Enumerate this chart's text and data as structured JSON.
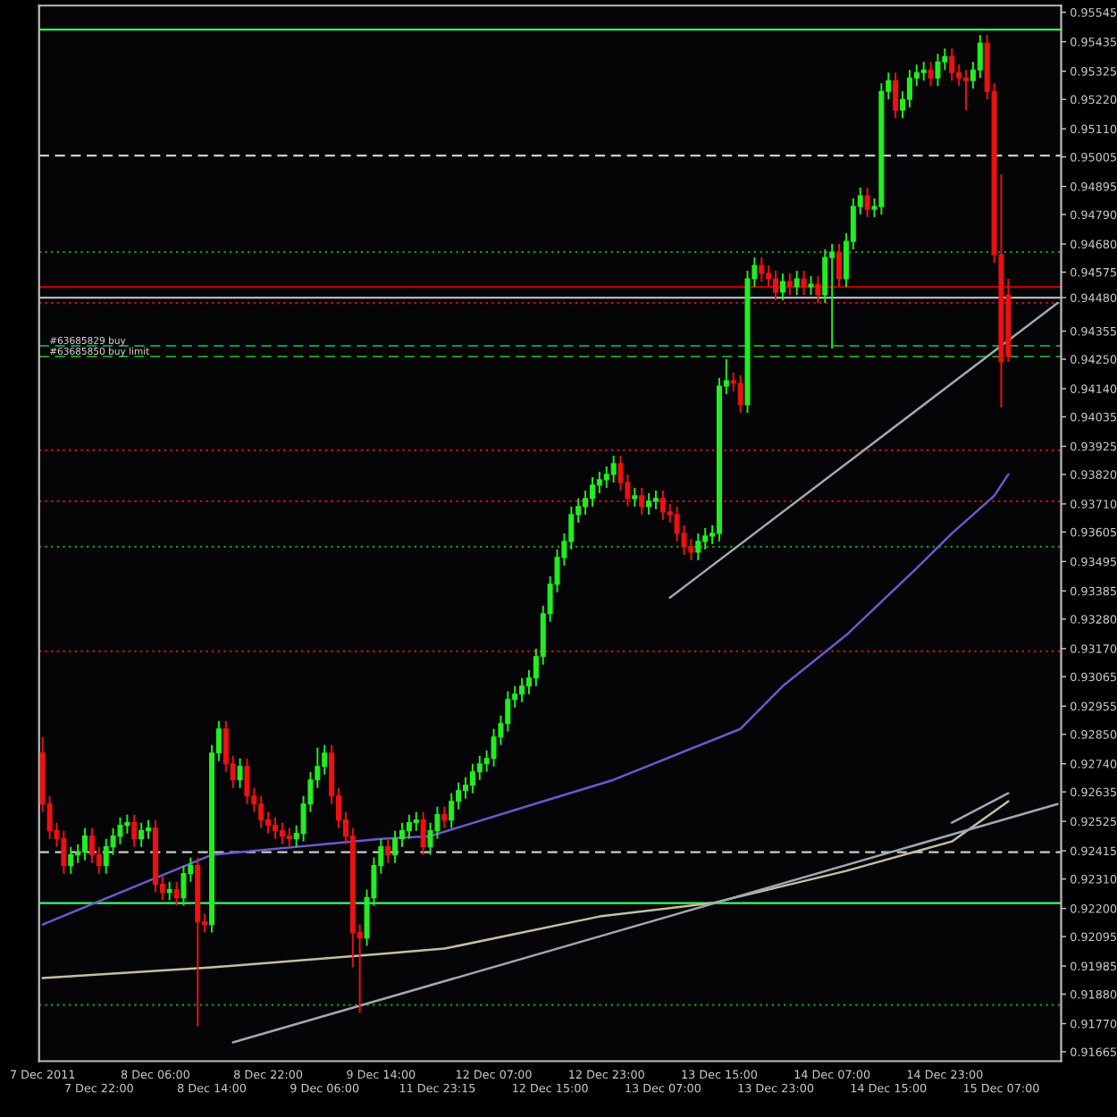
{
  "chart_data": {
    "type": "candlestick",
    "categories": [
      "7 Dec 2011",
      null,
      null,
      null,
      null,
      null,
      null,
      null,
      "7 Dec 22:00",
      null,
      null,
      null,
      null,
      null,
      null,
      null,
      "8 Dec 06:00",
      null,
      null,
      null,
      null,
      null,
      null,
      null,
      "8 Dec 14:00",
      null,
      null,
      null,
      null,
      null,
      null,
      null,
      "8 Dec 22:00",
      null,
      null,
      null,
      null,
      null,
      null,
      null,
      "9 Dec 06:00",
      null,
      null,
      null,
      null,
      null,
      null,
      null,
      "9 Dec 14:00",
      null,
      null,
      null,
      null,
      null,
      null,
      null,
      "11 Dec 23:15",
      null,
      null,
      null,
      null,
      null,
      null,
      null,
      "12 Dec 07:00",
      null,
      null,
      null,
      null,
      null,
      null,
      null,
      "12 Dec 15:00",
      null,
      null,
      null,
      null,
      null,
      null,
      null,
      "12 Dec 23:00",
      null,
      null,
      null,
      null,
      null,
      null,
      null,
      "13 Dec 07:00",
      null,
      null,
      null,
      null,
      null,
      null,
      null,
      "13 Dec 15:00",
      null,
      null,
      null,
      null,
      null,
      null,
      null,
      "13 Dec 23:00",
      null,
      null,
      null,
      null,
      null,
      null,
      null,
      "14 Dec 07:00",
      null,
      null,
      null,
      null,
      null,
      null,
      null,
      "14 Dec 15:00",
      null,
      null,
      null,
      null,
      null,
      null,
      null,
      "14 Dec 23:00",
      null,
      null,
      null,
      null,
      null,
      null,
      null,
      "15 Dec 07:00",
      null,
      null,
      null,
      null,
      null,
      null,
      null,
      null
    ],
    "ohlc": [
      [
        0.9278,
        0.9284,
        0.9256,
        0.9259
      ],
      [
        0.9259,
        0.9262,
        0.9246,
        0.9249
      ],
      [
        0.9249,
        0.9252,
        0.9243,
        0.9246
      ],
      [
        0.9246,
        0.9249,
        0.9233,
        0.9236
      ],
      [
        0.9236,
        0.9243,
        0.9233,
        0.924
      ],
      [
        0.924,
        0.9244,
        0.9237,
        0.9241
      ],
      [
        0.9241,
        0.925,
        0.9238,
        0.9247
      ],
      [
        0.9247,
        0.925,
        0.9237,
        0.924
      ],
      [
        0.924,
        0.9243,
        0.9233,
        0.9236
      ],
      [
        0.9236,
        0.9246,
        0.9233,
        0.9243
      ],
      [
        0.9243,
        0.925,
        0.924,
        0.9247
      ],
      [
        0.9247,
        0.9254,
        0.9244,
        0.9251
      ],
      [
        0.9251,
        0.9255,
        0.9248,
        0.9252
      ],
      [
        0.9252,
        0.9255,
        0.9243,
        0.9246
      ],
      [
        0.9246,
        0.9252,
        0.9243,
        0.9249
      ],
      [
        0.9249,
        0.9253,
        0.9246,
        0.925
      ],
      [
        0.925,
        0.9253,
        0.9226,
        0.9229
      ],
      [
        0.9229,
        0.9232,
        0.9223,
        0.9226
      ],
      [
        0.9226,
        0.923,
        0.9223,
        0.9227
      ],
      [
        0.9227,
        0.923,
        0.9221,
        0.9224
      ],
      [
        0.9224,
        0.9236,
        0.9221,
        0.9233
      ],
      [
        0.9233,
        0.9239,
        0.923,
        0.9236
      ],
      [
        0.9236,
        0.9239,
        0.9176,
        0.9215
      ],
      [
        0.9215,
        0.9218,
        0.9211,
        0.9214
      ],
      [
        0.9214,
        0.9281,
        0.9211,
        0.9278
      ],
      [
        0.9278,
        0.929,
        0.9275,
        0.9287
      ],
      [
        0.9287,
        0.929,
        0.9271,
        0.9274
      ],
      [
        0.9274,
        0.9277,
        0.9265,
        0.9268
      ],
      [
        0.9268,
        0.9276,
        0.9265,
        0.9273
      ],
      [
        0.9273,
        0.9276,
        0.9259,
        0.9262
      ],
      [
        0.9262,
        0.9265,
        0.9256,
        0.9259
      ],
      [
        0.9259,
        0.9262,
        0.925,
        0.9253
      ],
      [
        0.9253,
        0.9256,
        0.9248,
        0.9251
      ],
      [
        0.9251,
        0.9254,
        0.9246,
        0.9249
      ],
      [
        0.9249,
        0.9252,
        0.9244,
        0.9247
      ],
      [
        0.9247,
        0.925,
        0.9243,
        0.9246
      ],
      [
        0.9246,
        0.9251,
        0.9243,
        0.9248
      ],
      [
        0.9248,
        0.9262,
        0.9245,
        0.9259
      ],
      [
        0.9259,
        0.9271,
        0.9256,
        0.9268
      ],
      [
        0.9268,
        0.928,
        0.9265,
        0.9273
      ],
      [
        0.9273,
        0.9281,
        0.927,
        0.9278
      ],
      [
        0.9278,
        0.9281,
        0.9259,
        0.9262
      ],
      [
        0.9262,
        0.9265,
        0.925,
        0.9253
      ],
      [
        0.9253,
        0.9256,
        0.9244,
        0.9247
      ],
      [
        0.9247,
        0.925,
        0.9198,
        0.9211
      ],
      [
        0.9211,
        0.9214,
        0.9181,
        0.9209
      ],
      [
        0.9209,
        0.9227,
        0.9206,
        0.9224
      ],
      [
        0.9224,
        0.9239,
        0.9221,
        0.9236
      ],
      [
        0.9236,
        0.9246,
        0.9233,
        0.9243
      ],
      [
        0.9243,
        0.9246,
        0.9237,
        0.924
      ],
      [
        0.924,
        0.9249,
        0.9237,
        0.9246
      ],
      [
        0.9246,
        0.9252,
        0.9243,
        0.9249
      ],
      [
        0.9249,
        0.9255,
        0.9246,
        0.9252
      ],
      [
        0.9252,
        0.9256,
        0.9249,
        0.9253
      ],
      [
        0.9253,
        0.9256,
        0.924,
        0.9243
      ],
      [
        0.9243,
        0.9252,
        0.924,
        0.9249
      ],
      [
        0.9249,
        0.9258,
        0.9246,
        0.9255
      ],
      [
        0.9255,
        0.9258,
        0.925,
        0.9253
      ],
      [
        0.9253,
        0.9263,
        0.925,
        0.926
      ],
      [
        0.926,
        0.9267,
        0.9257,
        0.9264
      ],
      [
        0.9264,
        0.9269,
        0.9261,
        0.9266
      ],
      [
        0.9266,
        0.9274,
        0.9263,
        0.9271
      ],
      [
        0.9271,
        0.9277,
        0.9268,
        0.9274
      ],
      [
        0.9274,
        0.9279,
        0.9271,
        0.9276
      ],
      [
        0.9276,
        0.9287,
        0.9273,
        0.9284
      ],
      [
        0.9284,
        0.9292,
        0.9281,
        0.9289
      ],
      [
        0.9289,
        0.9301,
        0.9286,
        0.9298
      ],
      [
        0.9298,
        0.9303,
        0.9295,
        0.93
      ],
      [
        0.93,
        0.9306,
        0.9297,
        0.9303
      ],
      [
        0.9303,
        0.9309,
        0.93,
        0.9306
      ],
      [
        0.9306,
        0.9317,
        0.9303,
        0.9314
      ],
      [
        0.9314,
        0.9333,
        0.9311,
        0.933
      ],
      [
        0.933,
        0.9344,
        0.9327,
        0.9341
      ],
      [
        0.9341,
        0.9354,
        0.9338,
        0.9351
      ],
      [
        0.9351,
        0.936,
        0.9348,
        0.9357
      ],
      [
        0.9357,
        0.937,
        0.9354,
        0.9367
      ],
      [
        0.9367,
        0.9373,
        0.9364,
        0.937
      ],
      [
        0.937,
        0.9376,
        0.9367,
        0.9373
      ],
      [
        0.9373,
        0.9381,
        0.937,
        0.9378
      ],
      [
        0.9378,
        0.9383,
        0.9375,
        0.938
      ],
      [
        0.938,
        0.9385,
        0.9377,
        0.9382
      ],
      [
        0.9382,
        0.9389,
        0.9379,
        0.9386
      ],
      [
        0.9386,
        0.9389,
        0.9376,
        0.9379
      ],
      [
        0.9379,
        0.9382,
        0.937,
        0.9373
      ],
      [
        0.9373,
        0.9377,
        0.937,
        0.9374
      ],
      [
        0.9374,
        0.9377,
        0.9367,
        0.937
      ],
      [
        0.937,
        0.9375,
        0.9367,
        0.9372
      ],
      [
        0.9372,
        0.9376,
        0.9369,
        0.9373
      ],
      [
        0.9373,
        0.9376,
        0.9365,
        0.9368
      ],
      [
        0.9368,
        0.9371,
        0.9364,
        0.9367
      ],
      [
        0.9367,
        0.937,
        0.9357,
        0.936
      ],
      [
        0.936,
        0.9363,
        0.9352,
        0.9355
      ],
      [
        0.9355,
        0.9358,
        0.935,
        0.9353
      ],
      [
        0.9353,
        0.936,
        0.935,
        0.9357
      ],
      [
        0.9357,
        0.9362,
        0.9354,
        0.9359
      ],
      [
        0.9359,
        0.9363,
        0.9356,
        0.936
      ],
      [
        0.936,
        0.9418,
        0.9357,
        0.9415
      ],
      [
        0.9415,
        0.9425,
        0.9412,
        0.9417
      ],
      [
        0.9417,
        0.942,
        0.9413,
        0.9416
      ],
      [
        0.9416,
        0.9419,
        0.9405,
        0.9408
      ],
      [
        0.9408,
        0.9458,
        0.9405,
        0.9455
      ],
      [
        0.9455,
        0.9463,
        0.9452,
        0.946
      ],
      [
        0.946,
        0.9463,
        0.9454,
        0.9457
      ],
      [
        0.9457,
        0.946,
        0.9452,
        0.9455
      ],
      [
        0.9455,
        0.9458,
        0.9447,
        0.945
      ],
      [
        0.945,
        0.9457,
        0.9447,
        0.9454
      ],
      [
        0.9454,
        0.9457,
        0.9449,
        0.9452
      ],
      [
        0.9452,
        0.9458,
        0.9449,
        0.9455
      ],
      [
        0.9455,
        0.9458,
        0.9449,
        0.9452
      ],
      [
        0.9452,
        0.9456,
        0.9449,
        0.9453
      ],
      [
        0.9453,
        0.9456,
        0.9446,
        0.9449
      ],
      [
        0.9449,
        0.9466,
        0.9446,
        0.9463
      ],
      [
        0.9463,
        0.9468,
        0.9429,
        0.9465
      ],
      [
        0.9465,
        0.9468,
        0.9452,
        0.9455
      ],
      [
        0.9455,
        0.9472,
        0.9452,
        0.9469
      ],
      [
        0.9469,
        0.9485,
        0.9466,
        0.9482
      ],
      [
        0.9482,
        0.9489,
        0.9479,
        0.9486
      ],
      [
        0.9486,
        0.9489,
        0.9478,
        0.9481
      ],
      [
        0.9481,
        0.9485,
        0.9478,
        0.9482
      ],
      [
        0.9482,
        0.9528,
        0.9479,
        0.9525
      ],
      [
        0.9525,
        0.9532,
        0.9522,
        0.9529
      ],
      [
        0.9529,
        0.9532,
        0.9515,
        0.9518
      ],
      [
        0.9518,
        0.9525,
        0.9515,
        0.9522
      ],
      [
        0.9522,
        0.9533,
        0.9519,
        0.953
      ],
      [
        0.953,
        0.9535,
        0.9527,
        0.9532
      ],
      [
        0.9532,
        0.9536,
        0.9529,
        0.9533
      ],
      [
        0.9533,
        0.9536,
        0.9527,
        0.953
      ],
      [
        0.953,
        0.9539,
        0.9527,
        0.9536
      ],
      [
        0.9536,
        0.9541,
        0.9533,
        0.9538
      ],
      [
        0.9538,
        0.9541,
        0.9529,
        0.9532
      ],
      [
        0.9532,
        0.9535,
        0.9527,
        0.953
      ],
      [
        0.953,
        0.9533,
        0.9518,
        0.9529
      ],
      [
        0.9529,
        0.9536,
        0.9526,
        0.9533
      ],
      [
        0.9533,
        0.9546,
        0.953,
        0.9543
      ],
      [
        0.9543,
        0.9546,
        0.9522,
        0.9525
      ],
      [
        0.9525,
        0.9528,
        0.9461,
        0.9464
      ],
      [
        0.9464,
        0.9494,
        0.9407,
        0.9424
      ],
      [
        0.9449,
        0.9455,
        0.9424,
        0.9426
      ],
      null,
      null,
      null,
      null,
      null,
      null,
      null
    ],
    "colors": [
      "#ee1111",
      "#ee1111",
      "#ee1111",
      "#ee1111",
      "#22ee22",
      "#22ee22",
      "#22ee22",
      "#ee1111",
      "#ee1111",
      "#22ee22",
      "#22ee22",
      "#22ee22",
      "#22ee22",
      "#ee1111",
      "#22ee22",
      "#22ee22",
      "#ee1111",
      "#ee1111",
      "#22ee22",
      "#ee1111",
      "#22ee22",
      "#22ee22",
      "#ee1111",
      "#ee1111",
      "#22ee22",
      "#22ee22",
      "#ee1111",
      "#ee1111",
      "#22ee22",
      "#ee1111",
      "#ee1111",
      "#ee1111",
      "#ee1111",
      "#ee1111",
      "#ee1111",
      "#ee1111",
      "#22ee22",
      "#22ee22",
      "#22ee22",
      "#22ee22",
      "#22ee22",
      "#ee1111",
      "#ee1111",
      "#ee1111",
      "#ee1111",
      "#ee1111",
      "#22ee22",
      "#22ee22",
      "#22ee22",
      "#ee1111",
      "#22ee22",
      "#22ee22",
      "#22ee22",
      "#22ee22",
      "#ee1111",
      "#22ee22",
      "#22ee22",
      "#ee1111",
      "#22ee22",
      "#22ee22",
      "#22ee22",
      "#22ee22",
      "#22ee22",
      "#22ee22",
      "#22ee22",
      "#22ee22",
      "#22ee22",
      "#22ee22",
      "#22ee22",
      "#22ee22",
      "#22ee22",
      "#22ee22",
      "#22ee22",
      "#22ee22",
      "#22ee22",
      "#22ee22",
      "#22ee22",
      "#22ee22",
      "#22ee22",
      "#22ee22",
      "#22ee22",
      "#22ee22",
      "#ee1111",
      "#ee1111",
      "#22ee22",
      "#ee1111",
      "#22ee22",
      "#22ee22",
      "#ee1111",
      "#ee1111",
      "#ee1111",
      "#ee1111",
      "#ee1111",
      "#22ee22",
      "#22ee22",
      "#22ee22",
      "#22ee22",
      "#22ee22",
      "#ee1111",
      "#ee1111",
      "#22ee22",
      "#22ee22",
      "#ee1111",
      "#ee1111",
      "#ee1111",
      "#22ee22",
      "#ee1111",
      "#22ee22",
      "#ee1111",
      "#22ee22",
      "#ee1111",
      "#22ee22",
      "#22ee22",
      "#ee1111",
      "#22ee22",
      "#22ee22",
      "#22ee22",
      "#ee1111",
      "#22ee22",
      "#22ee22",
      "#22ee22",
      "#ee1111",
      "#22ee22",
      "#22ee22",
      "#22ee22",
      "#22ee22",
      "#ee1111",
      "#22ee22",
      "#22ee22",
      "#ee1111",
      "#ee1111",
      "#ee1111",
      "#22ee22",
      "#22ee22",
      "#ee1111",
      "#ee1111",
      "#ee1111",
      "#ee1111",
      null,
      null,
      null,
      null,
      null,
      null,
      null
    ],
    "series": [
      {
        "type": "line",
        "color": "#6a5acd",
        "values": [
          0.9214,
          null,
          null,
          null,
          null,
          null,
          null,
          null,
          null,
          null,
          null,
          null,
          null,
          null,
          null,
          null,
          null,
          null,
          null,
          null,
          null,
          null,
          null,
          null,
          0.924,
          null,
          null,
          null,
          null,
          null,
          null,
          null,
          null,
          null,
          null,
          null,
          null,
          null,
          null,
          null,
          null,
          null,
          null,
          null,
          null,
          null,
          null,
          null,
          0.9246,
          null,
          null,
          null,
          null,
          null,
          null,
          0.9247,
          null,
          null,
          null,
          null,
          null,
          null,
          null,
          null,
          null,
          null,
          null,
          null,
          null,
          null,
          null,
          0.926,
          null,
          null,
          null,
          null,
          null,
          null,
          null,
          null,
          null,
          0.9268,
          null,
          null,
          null,
          null,
          null,
          null,
          null,
          null,
          null,
          null,
          null,
          null,
          null,
          null,
          null,
          null,
          null,
          0.9287,
          null,
          null,
          null,
          null,
          null,
          0.9303,
          null,
          null,
          null,
          null,
          null,
          null,
          null,
          null,
          0.9322,
          null,
          null,
          null,
          null,
          null,
          null,
          null,
          null,
          null,
          0.9347,
          null,
          null,
          null,
          null,
          0.936,
          null,
          null,
          null,
          null,
          null,
          0.9374,
          null,
          0.9382,
          null,
          null,
          null,
          null,
          null,
          null,
          null
        ]
      },
      {
        "type": "line",
        "color": "#c8bea0",
        "values": [
          0.9194,
          null,
          null,
          null,
          null,
          null,
          null,
          null,
          null,
          null,
          null,
          null,
          null,
          null,
          null,
          null,
          null,
          null,
          null,
          null,
          null,
          null,
          null,
          null,
          0.9198,
          null,
          null,
          null,
          null,
          null,
          null,
          null,
          null,
          null,
          null,
          null,
          null,
          null,
          null,
          null,
          null,
          null,
          null,
          null,
          null,
          null,
          null,
          null,
          0.9203,
          null,
          null,
          null,
          null,
          null,
          null,
          null,
          null,
          0.9205,
          null,
          null,
          null,
          null,
          null,
          null,
          null,
          null,
          null,
          null,
          null,
          null,
          null,
          null,
          null,
          null,
          null,
          null,
          null,
          null,
          null,
          0.9217,
          null,
          null,
          null,
          null,
          null,
          null,
          null,
          null,
          null,
          null,
          null,
          null,
          null,
          null,
          null,
          0.9222,
          null,
          null,
          null,
          null,
          null,
          null,
          null,
          null,
          null,
          null,
          null,
          null,
          null,
          null,
          null,
          null,
          null,
          null,
          0.9234,
          null,
          null,
          null,
          null,
          null,
          null,
          null,
          null,
          null,
          null,
          null,
          null,
          null,
          null,
          0.9245,
          null,
          null,
          null,
          null,
          null,
          null,
          null,
          0.926,
          null,
          null,
          null,
          null,
          null,
          null,
          null
        ]
      },
      {
        "type": "line",
        "color": "#a0a8b0",
        "values": [
          null,
          null,
          null,
          null,
          null,
          null,
          null,
          null,
          null,
          null,
          null,
          null,
          null,
          null,
          null,
          null,
          null,
          null,
          null,
          null,
          null,
          null,
          null,
          null,
          null,
          null,
          null,
          0.917,
          null,
          null,
          null,
          null,
          null,
          null,
          null,
          null,
          null,
          null,
          null,
          null,
          null,
          null,
          null,
          null,
          null,
          null,
          null,
          null,
          null,
          null,
          null,
          null,
          null,
          null,
          null,
          null,
          null,
          null,
          null,
          null,
          null,
          null,
          null,
          null,
          null,
          null,
          null,
          null,
          null,
          null,
          null,
          null,
          null,
          null,
          null,
          null,
          null,
          null,
          null,
          null,
          null,
          null,
          null,
          null,
          null,
          null,
          null,
          null,
          null,
          null,
          null,
          null,
          null,
          null,
          null,
          null,
          null,
          null,
          null,
          null,
          null,
          null,
          null,
          null,
          null,
          null,
          null,
          null,
          null,
          null,
          null,
          null,
          null,
          null,
          null,
          null,
          null,
          null,
          null,
          null,
          null,
          null,
          null,
          null,
          null,
          null,
          null,
          null,
          null,
          null,
          null,
          null,
          null,
          null,
          null,
          null,
          null,
          null,
          null,
          null,
          null,
          null,
          null,
          null,
          0.9259
        ]
      },
      {
        "type": "line",
        "color": "#a0a8b0",
        "values": [
          null,
          null,
          null,
          null,
          null,
          null,
          null,
          null,
          null,
          null,
          null,
          null,
          null,
          null,
          null,
          null,
          null,
          null,
          null,
          null,
          null,
          null,
          null,
          null,
          null,
          null,
          null,
          null,
          null,
          null,
          null,
          null,
          null,
          null,
          null,
          null,
          null,
          null,
          null,
          null,
          null,
          null,
          null,
          null,
          null,
          null,
          null,
          null,
          null,
          null,
          null,
          null,
          null,
          null,
          null,
          null,
          null,
          null,
          null,
          null,
          null,
          null,
          null,
          null,
          null,
          null,
          null,
          null,
          null,
          null,
          null,
          null,
          null,
          null,
          null,
          null,
          null,
          null,
          null,
          null,
          null,
          null,
          null,
          null,
          null,
          null,
          null,
          null,
          null,
          0.9336,
          null,
          null,
          null,
          null,
          null,
          null,
          null,
          null,
          null,
          null,
          null,
          null,
          null,
          null,
          null,
          null,
          null,
          null,
          null,
          null,
          null,
          null,
          null,
          null,
          null,
          null,
          null,
          null,
          null,
          null,
          null,
          null,
          null,
          null,
          null,
          null,
          null,
          null,
          null,
          null,
          null,
          null,
          null,
          null,
          null,
          null,
          null,
          null,
          null,
          null,
          null,
          null,
          null,
          null,
          0.9446
        ]
      },
      {
        "type": "line",
        "color": "#a0a8b0",
        "values": [
          null,
          null,
          null,
          null,
          null,
          null,
          null,
          null,
          null,
          null,
          null,
          null,
          null,
          null,
          null,
          null,
          null,
          null,
          null,
          null,
          null,
          null,
          null,
          null,
          null,
          null,
          null,
          null,
          null,
          null,
          null,
          null,
          null,
          null,
          null,
          null,
          null,
          null,
          null,
          null,
          null,
          null,
          null,
          null,
          null,
          null,
          null,
          null,
          null,
          null,
          null,
          null,
          null,
          null,
          null,
          null,
          null,
          null,
          null,
          null,
          null,
          null,
          null,
          null,
          null,
          null,
          null,
          null,
          null,
          null,
          null,
          null,
          null,
          null,
          null,
          null,
          null,
          null,
          null,
          null,
          null,
          null,
          null,
          null,
          null,
          null,
          null,
          null,
          null,
          null,
          null,
          null,
          null,
          null,
          null,
          null,
          null,
          null,
          null,
          null,
          null,
          null,
          null,
          null,
          null,
          null,
          null,
          null,
          null,
          null,
          null,
          null,
          null,
          null,
          null,
          null,
          null,
          null,
          null,
          null,
          null,
          null,
          null,
          null,
          null,
          null,
          null,
          null,
          null,
          0.9252,
          null,
          null,
          null,
          null,
          null,
          null,
          null,
          0.9263,
          null,
          null,
          null,
          null,
          null,
          null,
          null
        ]
      }
    ],
    "ylim": [
      0.9163,
      0.9557
    ],
    "yticks": [
      {
        "value": 0.95545,
        "label": "0.95545"
      },
      {
        "value": 0.95435,
        "label": "0.95435"
      },
      {
        "value": 0.95325,
        "label": "0.95325"
      },
      {
        "value": 0.9522,
        "label": "0.95220"
      },
      {
        "value": 0.9511,
        "label": "0.95110"
      },
      {
        "value": 0.95005,
        "label": "0.95005"
      },
      {
        "value": 0.94895,
        "label": "0.94895"
      },
      {
        "value": 0.9479,
        "label": "0.94790"
      },
      {
        "value": 0.9468,
        "label": "0.94680"
      },
      {
        "value": 0.94575,
        "label": "0.94575"
      },
      {
        "value": 0.9448,
        "label": "0.94480"
      },
      {
        "value": 0.94355,
        "label": "0.94355"
      },
      {
        "value": 0.9425,
        "label": "0.94250"
      },
      {
        "value": 0.9414,
        "label": "0.94140"
      },
      {
        "value": 0.94035,
        "label": "0.94035"
      },
      {
        "value": 0.93925,
        "label": "0.93925"
      },
      {
        "value": 0.9382,
        "label": "0.93820"
      },
      {
        "value": 0.9371,
        "label": "0.93710"
      },
      {
        "value": 0.93605,
        "label": "0.93605"
      },
      {
        "value": 0.93495,
        "label": "0.93495"
      },
      {
        "value": 0.93385,
        "label": "0.93385"
      },
      {
        "value": 0.9328,
        "label": "0.93280"
      },
      {
        "value": 0.9317,
        "label": "0.93170"
      },
      {
        "value": 0.93065,
        "label": "0.93065"
      },
      {
        "value": 0.92955,
        "label": "0.92955"
      },
      {
        "value": 0.9285,
        "label": "0.92850"
      },
      {
        "value": 0.9274,
        "label": "0.92740"
      },
      {
        "value": 0.92635,
        "label": "0.92635"
      },
      {
        "value": 0.92525,
        "label": "0.92525"
      },
      {
        "value": 0.92415,
        "label": "0.92415"
      },
      {
        "value": 0.9231,
        "label": "0.92310"
      },
      {
        "value": 0.922,
        "label": "0.92200"
      },
      {
        "value": 0.92095,
        "label": "0.92095"
      },
      {
        "value": 0.91985,
        "label": "0.91985"
      },
      {
        "value": 0.9188,
        "label": "0.91880"
      },
      {
        "value": 0.9177,
        "label": "0.91770"
      },
      {
        "value": 0.91665,
        "label": "0.91665"
      }
    ],
    "ref_lines": [
      {
        "axis": "y",
        "value": 0.9548,
        "color": "#33ff66",
        "line_style": "solid"
      },
      {
        "axis": "y",
        "value": 0.9222,
        "color": "#33ff66",
        "line_style": "solid"
      },
      {
        "axis": "y",
        "value": 0.9452,
        "color": "#bb0000",
        "line_style": "solid"
      },
      {
        "axis": "y",
        "value": 0.9448,
        "color": "#b0b8c0",
        "line_style": "solid"
      },
      {
        "axis": "y",
        "value": 0.9446,
        "color": "#cc1111",
        "line_style": "dotted"
      },
      {
        "axis": "y",
        "value": 0.9391,
        "color": "#cc1111",
        "line_style": "dotted"
      },
      {
        "axis": "y",
        "value": 0.9372,
        "color": "#cc1111",
        "line_style": "dotted"
      },
      {
        "axis": "y",
        "value": 0.9316,
        "color": "#cc1111",
        "line_style": "dotted"
      },
      {
        "axis": "y",
        "value": 0.943,
        "color": "#1a9a1a",
        "line_style": "dashed",
        "label": "#63685829 buy"
      },
      {
        "axis": "y",
        "value": 0.9426,
        "color": "#1a9a1a",
        "line_style": "dashed",
        "label": "#63685850 buy limit"
      },
      {
        "axis": "y",
        "value": 0.9501,
        "color": "#cccccc",
        "line_style": "dashed"
      },
      {
        "axis": "y",
        "value": 0.9241,
        "color": "#cccccc",
        "line_style": "dashed"
      },
      {
        "axis": "y",
        "value": 0.9465,
        "color": "#1a9a1a",
        "line_style": "dotted"
      },
      {
        "axis": "y",
        "value": 0.9355,
        "color": "#1a9a1a",
        "line_style": "dotted"
      },
      {
        "axis": "y",
        "value": 0.9184,
        "color": "#1a9a1a",
        "line_style": "dotted"
      }
    ]
  }
}
